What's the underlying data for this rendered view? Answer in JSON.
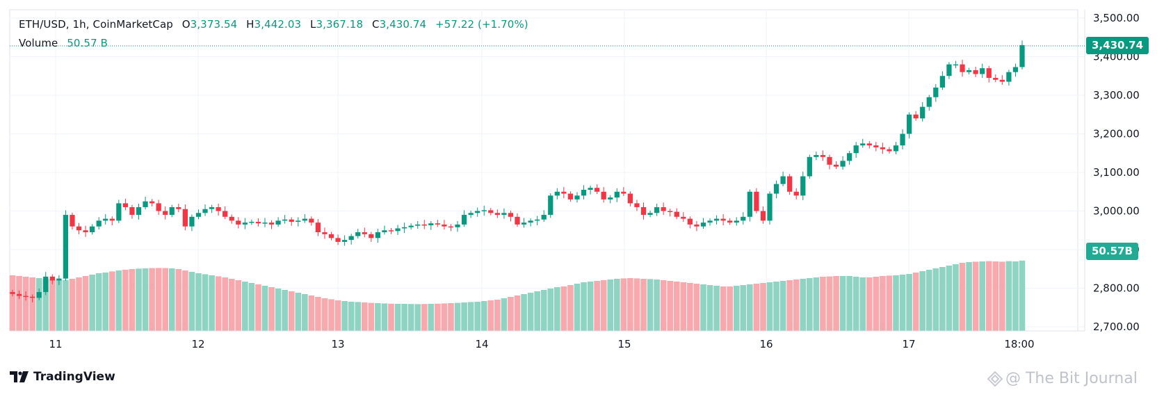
{
  "legend": {
    "symbol": "ETH/USD",
    "interval": "1h",
    "source": "CoinMarketCap",
    "open_label": "O",
    "open": "3,373.54",
    "high_label": "H",
    "high": "3,442.03",
    "low_label": "L",
    "low": "3,367.18",
    "close_label": "C",
    "close": "3,430.74",
    "change": "+57.22 (+1.70%)",
    "volume_label": "Volume",
    "volume": "50.57 B"
  },
  "tags": {
    "last_price": "3,430.74",
    "volume": "50.57B"
  },
  "branding": {
    "logo_text": "TradingView",
    "watermark": "@ The Bit Journal"
  },
  "colors": {
    "up": "#089981",
    "down": "#f23645",
    "volume_up": "#8fd3c3",
    "volume_down": "#f7a9ad",
    "grid": "#f0f3fa"
  },
  "chart_data": {
    "type": "candlestick",
    "pair": "ETH/USD",
    "interval": "1h",
    "y_ticks": [
      3500,
      3400,
      3300,
      3200,
      3100,
      3000,
      2900,
      2800,
      2700
    ],
    "y_tick_labels": [
      "3,500.00",
      "3,400.00",
      "3,300.00",
      "3,200.00",
      "3,100.00",
      "3,000.00",
      "2,900.00",
      "2,800.00",
      "2,700.00"
    ],
    "ylim": [
      2693,
      3530
    ],
    "x_tick_labels": [
      "11",
      "12",
      "13",
      "14",
      "15",
      "16",
      "17",
      "18:00"
    ],
    "closes": [
      2785,
      2780,
      2778,
      2775,
      2790,
      2830,
      2820,
      2825,
      2990,
      2960,
      2950,
      2945,
      2960,
      2975,
      2980,
      2975,
      3020,
      3010,
      2990,
      3010,
      3025,
      3020,
      3000,
      2990,
      3010,
      3005,
      2960,
      2985,
      2995,
      3005,
      3010,
      3000,
      2985,
      2975,
      2965,
      2970,
      2972,
      2968,
      2970,
      2965,
      2975,
      2978,
      2972,
      2975,
      2980,
      2970,
      2945,
      2940,
      2930,
      2920,
      2925,
      2935,
      2945,
      2940,
      2930,
      2945,
      2950,
      2948,
      2955,
      2958,
      2962,
      2965,
      2963,
      2968,
      2965,
      2960,
      2958,
      2965,
      2990,
      2995,
      3000,
      3002,
      2995,
      2990,
      2995,
      2985,
      2965,
      2970,
      2975,
      2978,
      2990,
      3040,
      3050,
      3045,
      3030,
      3040,
      3055,
      3060,
      3050,
      3030,
      3035,
      3050,
      3045,
      3020,
      3010,
      2990,
      2995,
      3010,
      3000,
      2998,
      2985,
      2980,
      2965,
      2960,
      2970,
      2975,
      2980,
      2975,
      2970,
      2975,
      2985,
      3050,
      3000,
      2975,
      3045,
      3070,
      3090,
      3050,
      3040,
      3090,
      3140,
      3145,
      3140,
      3120,
      3115,
      3130,
      3150,
      3170,
      3175,
      3170,
      3165,
      3160,
      3155,
      3170,
      3200,
      3250,
      3240,
      3270,
      3295,
      3320,
      3350,
      3380,
      3380,
      3360,
      3365,
      3355,
      3370,
      3345,
      3340,
      3335,
      3360,
      3373,
      3430
    ],
    "volumes_billion": [
      40.0,
      39.5,
      39.0,
      38.5,
      38.0,
      37.5,
      37.0,
      36.8,
      36.6,
      37.5,
      38.5,
      39.5,
      40.5,
      41.5,
      42.0,
      42.8,
      43.5,
      44.0,
      44.5,
      44.8,
      45.0,
      45.2,
      45.3,
      45.2,
      45.0,
      44.5,
      43.5,
      42.5,
      41.5,
      40.8,
      40.0,
      39.3,
      38.5,
      37.5,
      36.5,
      35.5,
      34.5,
      33.5,
      32.5,
      31.5,
      30.5,
      29.5,
      28.5,
      27.5,
      26.5,
      25.5,
      24.5,
      23.5,
      22.8,
      22.0,
      21.5,
      21.0,
      20.8,
      20.5,
      20.2,
      20.0,
      19.8,
      19.6,
      19.5,
      19.5,
      19.4,
      19.3,
      19.4,
      19.5,
      19.6,
      19.8,
      20.0,
      20.2,
      20.5,
      20.8,
      21.0,
      21.5,
      22.0,
      22.5,
      23.5,
      24.5,
      25.5,
      26.5,
      27.5,
      28.5,
      29.5,
      30.5,
      31.5,
      32.0,
      33.0,
      34.0,
      35.0,
      35.5,
      36.0,
      36.5,
      37.0,
      37.5,
      37.8,
      38.0,
      37.8,
      37.5,
      37.3,
      37.0,
      36.5,
      36.0,
      35.5,
      35.0,
      34.5,
      34.0,
      33.5,
      33.0,
      32.5,
      32.0,
      32.0,
      32.5,
      33.0,
      33.5,
      34.0,
      34.5,
      35.0,
      35.5,
      36.0,
      36.5,
      37.0,
      37.5,
      38.0,
      38.5,
      39.0,
      39.2,
      39.5,
      39.5,
      39.5,
      39.0,
      38.5,
      38.5,
      39.0,
      39.5,
      39.8,
      40.0,
      40.5,
      41.0,
      42.0,
      43.0,
      44.0,
      45.0,
      46.0,
      47.0,
      48.0,
      49.0,
      49.5,
      49.8,
      50.0,
      50.2,
      50.0,
      49.8,
      50.2,
      50.0,
      50.57
    ],
    "volume_axis_max_billion": 80
  }
}
